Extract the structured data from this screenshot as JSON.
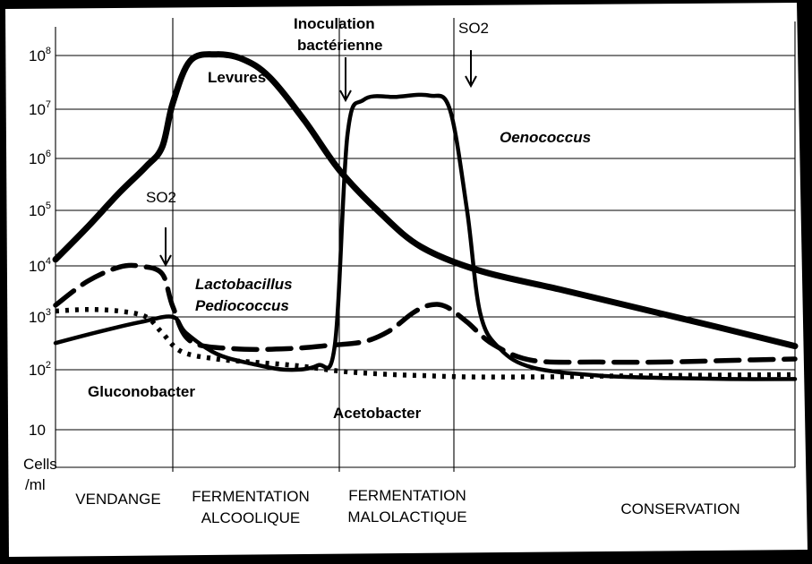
{
  "chart_data": {
    "type": "line",
    "yscale": "log",
    "ylabel_lines": [
      "Cells",
      "/ml"
    ],
    "y_ticks": [
      {
        "base": "10",
        "exp": ""
      },
      {
        "base": "10",
        "exp": "2"
      },
      {
        "base": "10",
        "exp": "3"
      },
      {
        "base": "10",
        "exp": "4"
      },
      {
        "base": "10",
        "exp": "5"
      },
      {
        "base": "10",
        "exp": "6"
      },
      {
        "base": "10",
        "exp": "7"
      },
      {
        "base": "10",
        "exp": "8"
      }
    ],
    "phases": [
      {
        "lines": [
          "VENDANGE"
        ]
      },
      {
        "lines": [
          "FERMENTATION",
          "ALCOOLIQUE"
        ]
      },
      {
        "lines": [
          "FERMENTATION",
          "MALOLACTIQUE"
        ]
      },
      {
        "lines": [
          "CONSERVATION"
        ]
      }
    ],
    "grid": true,
    "series": [
      {
        "name": "Levures",
        "style": "solid-thick",
        "color": "#000000",
        "x": [
          0,
          0.3,
          0.6,
          0.85,
          1,
          1.1,
          1.3,
          1.6,
          1.9,
          2.2,
          2.6,
          3,
          3.5,
          4,
          4.6,
          5.2,
          5.8,
          6.4,
          7
        ],
        "y": [
          13000.0,
          50000.0,
          220000.0,
          700000.0,
          1700000.0,
          13000000.0,
          80000000.0,
          105000000.0,
          85000000.0,
          40000000.0,
          6000000.0,
          600000.0,
          90000.0,
          22000.0,
          8000.0,
          3500.0,
          1500.0,
          650.0,
          280.0
        ]
      },
      {
        "name": "Oenococcus",
        "style": "solid",
        "color": "#000000",
        "x": [
          0,
          0.4,
          0.8,
          1.1,
          1.25,
          1.6,
          2,
          2.4,
          2.75,
          2.95,
          3.1,
          3.3,
          3.7,
          4.1,
          4.35,
          4.5,
          4.6,
          4.75,
          5,
          5.5,
          6,
          6.5,
          7
        ],
        "y": [
          320.0,
          520.0,
          800.0,
          1000.0,
          500.0,
          200.0,
          130.0,
          100.0,
          120.0,
          300.0,
          3000000.0,
          15000000.0,
          17000000.0,
          18000000.0,
          10000000.0,
          100000.0,
          1200.0,
          250.0,
          110.0,
          80.0,
          73.0,
          70.0,
          70.0
        ]
      },
      {
        "name": "Lactobacillus / Pediococcus",
        "style": "dashed",
        "color": "#000000",
        "x": [
          0,
          0.3,
          0.6,
          0.8,
          1,
          1.1,
          1.3,
          1.8,
          2.4,
          2.9,
          3.3,
          3.6,
          3.9,
          4.1,
          4.3,
          4.5,
          4.7,
          5,
          5.5,
          6,
          6.5,
          7
        ],
        "y": [
          1700.0,
          5000.0,
          9500.0,
          9800.0,
          7000.0,
          1600.0,
          350.0,
          250.0,
          250.0,
          290.0,
          340.0,
          530.0,
          1200.0,
          1700.0,
          1600.0,
          800.0,
          300.0,
          150.0,
          140.0,
          140.0,
          150.0,
          160.0
        ]
      },
      {
        "name": "Gluconobacter / Acetobacter",
        "style": "dotted",
        "color": "#000000",
        "x": [
          0,
          0.3,
          0.6,
          0.85,
          1,
          1.2,
          1.6,
          2,
          2.5,
          3,
          3.5,
          4,
          4.5,
          5,
          5.5,
          6,
          7
        ],
        "y": [
          1300.0,
          1400.0,
          1300.0,
          1000.0,
          500.0,
          220.0,
          160.0,
          140.0,
          120.0,
          95.0,
          85.0,
          80.0,
          76.0,
          76.0,
          78.0,
          80.0,
          83.0
        ]
      }
    ],
    "labels": {
      "levures": "Levures",
      "oenococcus": "Oenococcus",
      "lactobacillus": "Lactobacillus",
      "pediococcus": "Pediococcus",
      "gluconobacter": "Gluconobacter",
      "acetobacter": "Acetobacter"
    },
    "annotations": {
      "so2_first": "SO2",
      "so2_second": "SO2",
      "inoculation_lines": [
        "Inoculation",
        "bactérienne"
      ]
    }
  }
}
